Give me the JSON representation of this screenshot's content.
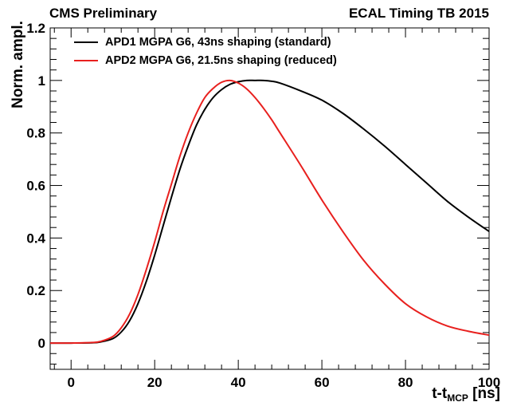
{
  "header": {
    "left": "CMS Preliminary",
    "right": "ECAL Timing TB 2015"
  },
  "chart_data": {
    "type": "line",
    "title": "",
    "xlabel_main": "t-t",
    "xlabel_sub": "MCP",
    "xlabel_unit": " [ns]",
    "ylabel": "Norm. ampl.",
    "xlim": [
      -5,
      100
    ],
    "ylim": [
      -0.1,
      1.2
    ],
    "xticks": [
      0,
      20,
      40,
      60,
      80,
      100
    ],
    "yticks": [
      0,
      0.2,
      0.4,
      0.6,
      0.8,
      1,
      1.2
    ],
    "xtick_labels": [
      "0",
      "20",
      "40",
      "60",
      "80",
      "100"
    ],
    "ytick_labels": [
      "0",
      "0.2",
      "0.4",
      "0.6",
      "0.8",
      "1",
      "1.2"
    ],
    "grid": false,
    "legend_position": "top-left",
    "series": [
      {
        "name": "APD1 MGPA G6, 43ns shaping (standard)",
        "color": "#000000",
        "x": [
          -5,
          0,
          5,
          7,
          10,
          12,
          14,
          16,
          18,
          20,
          22,
          24,
          26,
          28,
          30,
          32,
          34,
          36,
          38,
          40,
          42,
          44,
          46,
          48,
          50,
          55,
          60,
          65,
          70,
          75,
          80,
          85,
          90,
          95,
          100
        ],
        "y": [
          0,
          0,
          0.001,
          0.004,
          0.017,
          0.042,
          0.085,
          0.15,
          0.235,
          0.335,
          0.445,
          0.555,
          0.66,
          0.75,
          0.83,
          0.89,
          0.935,
          0.965,
          0.985,
          0.995,
          1.0,
          1.0,
          1.0,
          0.997,
          0.99,
          0.96,
          0.925,
          0.875,
          0.815,
          0.75,
          0.68,
          0.61,
          0.54,
          0.48,
          0.425
        ]
      },
      {
        "name": "APD2 MGPA G6, 21.5ns shaping (reduced)",
        "color": "#e8201e",
        "x": [
          -5,
          0,
          5,
          7,
          10,
          12,
          14,
          16,
          18,
          20,
          22,
          24,
          26,
          28,
          30,
          32,
          34,
          36,
          38,
          40,
          42,
          44,
          46,
          48,
          50,
          55,
          60,
          65,
          70,
          75,
          80,
          85,
          90,
          95,
          100
        ],
        "y": [
          0,
          0,
          0.002,
          0.006,
          0.025,
          0.058,
          0.11,
          0.185,
          0.28,
          0.385,
          0.5,
          0.605,
          0.71,
          0.8,
          0.875,
          0.935,
          0.97,
          0.993,
          1.0,
          0.99,
          0.968,
          0.935,
          0.895,
          0.85,
          0.8,
          0.675,
          0.545,
          0.425,
          0.315,
          0.225,
          0.15,
          0.1,
          0.065,
          0.045,
          0.03
        ]
      }
    ]
  }
}
